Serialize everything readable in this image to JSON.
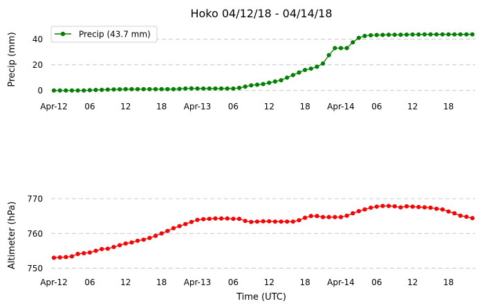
{
  "chart_data": [
    {
      "type": "line",
      "title": "Hoko 04/12/18 - 04/14/18",
      "xlabel": "",
      "ylabel": "Precip (mm)",
      "ylim": [
        -5,
        50
      ],
      "yticks": [
        0,
        20,
        40
      ],
      "xlim": [
        0,
        70.5
      ],
      "xticks": [
        0,
        6,
        12,
        18,
        24,
        30,
        36,
        42,
        48,
        54,
        60,
        66
      ],
      "xtick_labels": [
        "Apr-12",
        "06",
        "12",
        "18",
        "Apr-13",
        "06",
        "12",
        "18",
        "Apr-14",
        "06",
        "12",
        "18"
      ],
      "grid": "y-dashed",
      "legend": "upper-left",
      "series": [
        {
          "name": "Precip (43.7 mm)",
          "color": "#008000",
          "x": [
            0,
            1,
            2,
            3,
            4,
            5,
            6,
            7,
            8,
            9,
            10,
            11,
            12,
            13,
            14,
            15,
            16,
            17,
            18,
            19,
            20,
            21,
            22,
            23,
            24,
            25,
            26,
            27,
            28,
            29,
            30,
            31,
            32,
            33,
            34,
            35,
            36,
            37,
            38,
            39,
            40,
            41,
            42,
            43,
            44,
            45,
            46,
            47,
            48,
            49,
            50,
            51,
            52,
            53,
            54,
            55,
            56,
            57,
            58,
            59,
            60,
            61,
            62,
            63,
            64,
            65,
            66,
            67,
            68,
            69,
            70
          ],
          "values": [
            0,
            0,
            0,
            0,
            0,
            0,
            0.2,
            0.4,
            0.5,
            0.7,
            0.8,
            0.9,
            1,
            1,
            1,
            1,
            1,
            1,
            1,
            1,
            1,
            1.2,
            1.5,
            1.6,
            1.5,
            1.5,
            1.5,
            1.5,
            1.5,
            1.5,
            1.5,
            2,
            3,
            4,
            4.5,
            5,
            6,
            7,
            8,
            10,
            12,
            14,
            16,
            17,
            18.5,
            21,
            27.5,
            33,
            33,
            33,
            37.5,
            41,
            42.5,
            43,
            43.2,
            43.3,
            43.4,
            43.4,
            43.4,
            43.5,
            43.6,
            43.6,
            43.7,
            43.7,
            43.7,
            43.7,
            43.7,
            43.7,
            43.7,
            43.7,
            43.7
          ]
        }
      ]
    },
    {
      "type": "line",
      "title": "",
      "xlabel": "Time (UTC)",
      "ylabel": "Altimeter (hPa)",
      "ylim": [
        748.5,
        772
      ],
      "yticks": [
        750,
        760,
        770
      ],
      "xlim": [
        0,
        70.5
      ],
      "xticks": [
        0,
        6,
        12,
        18,
        24,
        30,
        36,
        42,
        48,
        54,
        60,
        66
      ],
      "xtick_labels": [
        "Apr-12",
        "06",
        "12",
        "18",
        "Apr-13",
        "06",
        "12",
        "18",
        "Apr-14",
        "06",
        "12",
        "18"
      ],
      "grid": "y-dashed",
      "series": [
        {
          "color": "#ff0000",
          "x": [
            0,
            1,
            2,
            3,
            4,
            5,
            6,
            7,
            8,
            9,
            10,
            11,
            12,
            13,
            14,
            15,
            16,
            17,
            18,
            19,
            20,
            21,
            22,
            23,
            24,
            25,
            26,
            27,
            28,
            29,
            30,
            31,
            32,
            33,
            34,
            35,
            36,
            37,
            38,
            39,
            40,
            41,
            42,
            43,
            44,
            45,
            46,
            47,
            48,
            49,
            50,
            51,
            52,
            53,
            54,
            55,
            56,
            57,
            58,
            59,
            60,
            61,
            62,
            63,
            64,
            65,
            66,
            67,
            68,
            69,
            70
          ],
          "values": [
            753,
            753.1,
            753.2,
            753.4,
            754.1,
            754.3,
            754.5,
            755,
            755.5,
            755.6,
            756.1,
            756.6,
            757.1,
            757.4,
            757.9,
            758.2,
            758.7,
            759.3,
            760,
            760.7,
            761.5,
            762.1,
            762.7,
            763.3,
            763.9,
            764.1,
            764.2,
            764.3,
            764.3,
            764.3,
            764.2,
            764.2,
            763.6,
            763.3,
            763.4,
            763.5,
            763.5,
            763.4,
            763.4,
            763.4,
            763.4,
            763.8,
            764.5,
            765,
            765,
            764.7,
            764.7,
            764.7,
            764.7,
            765.1,
            765.8,
            766.4,
            766.9,
            767.4,
            767.7,
            767.9,
            767.9,
            767.8,
            767.5,
            767.8,
            767.7,
            767.6,
            767.5,
            767.4,
            767.1,
            766.9,
            766.3,
            765.8,
            765.1,
            764.8,
            764.4
          ]
        }
      ]
    }
  ]
}
